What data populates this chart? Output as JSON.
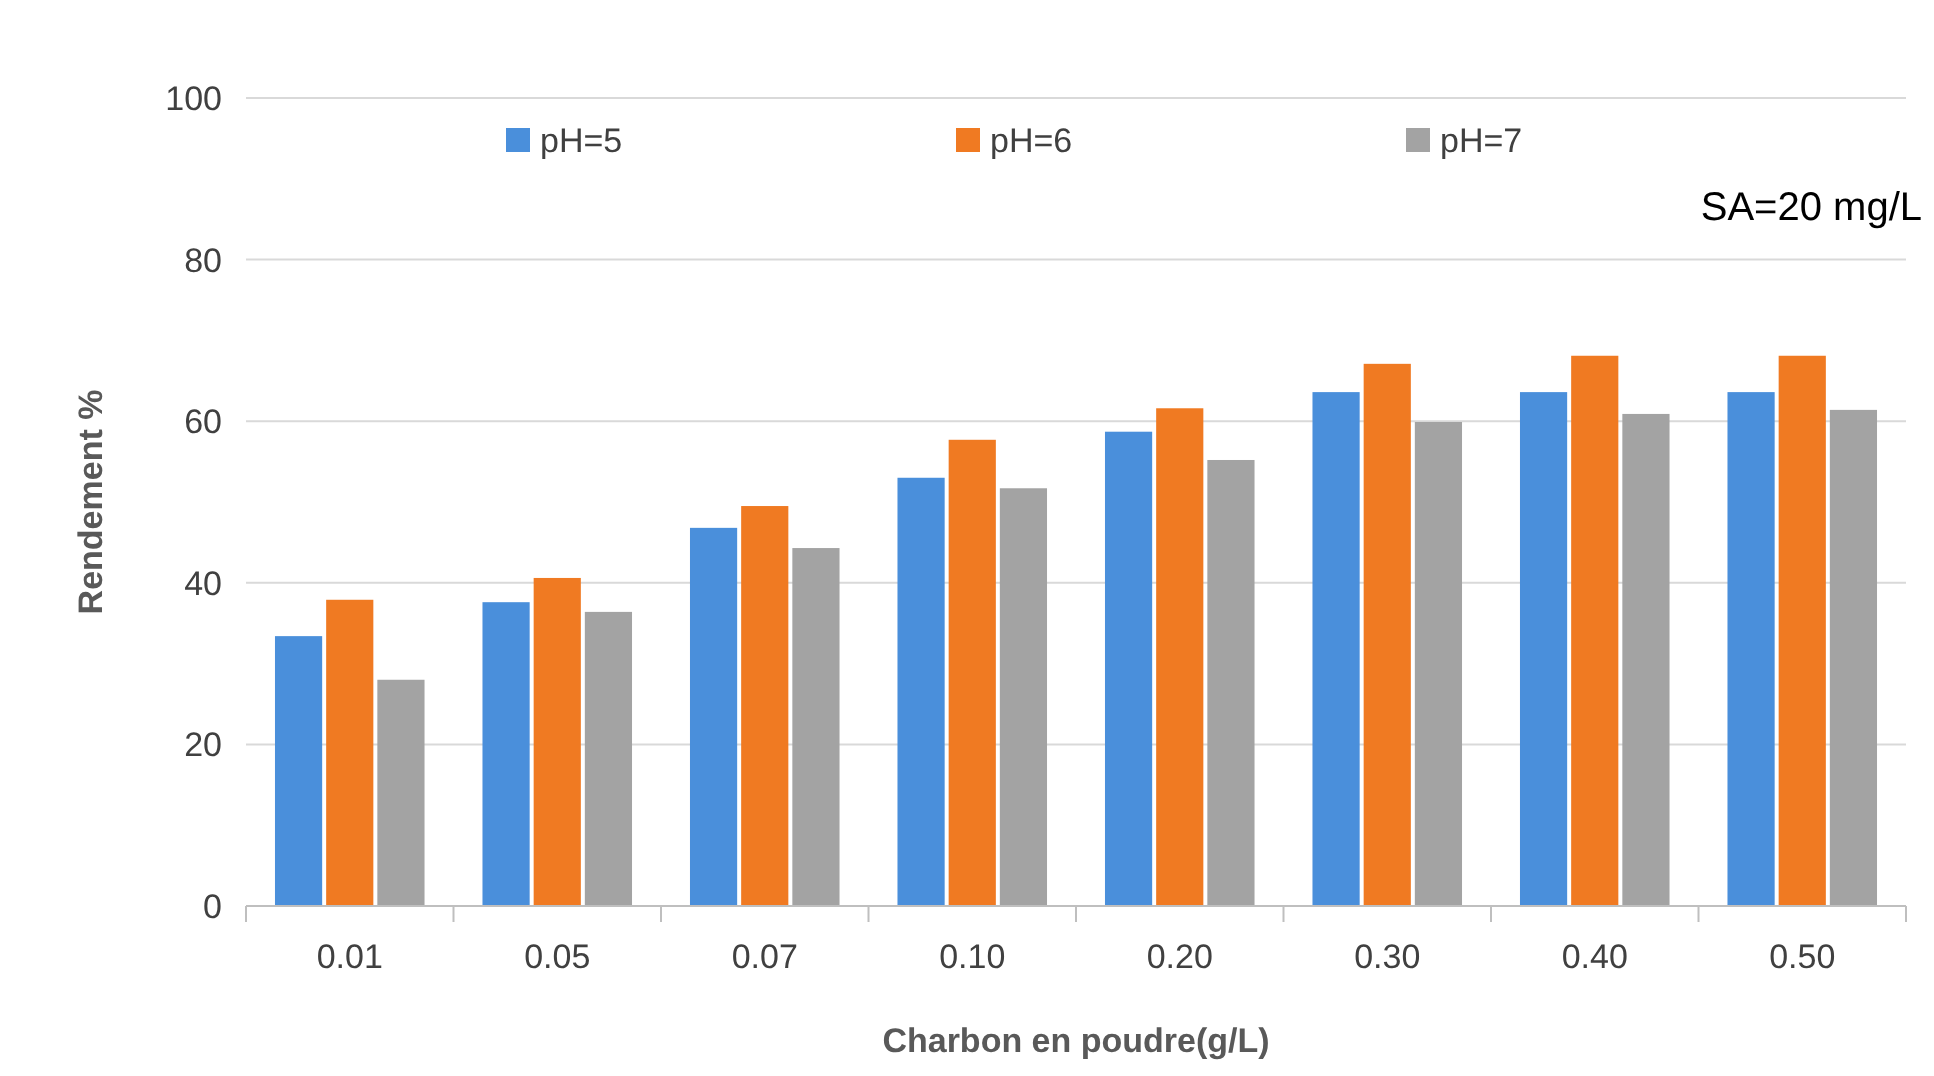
{
  "chart_data": {
    "type": "bar",
    "xlabel": "Charbon en poudre(g/L)",
    "ylabel": "Rendement  %",
    "categories": [
      "0.01",
      "0.05",
      "0.07",
      "0.10",
      "0.20",
      "0.30",
      "0.40",
      "0.50"
    ],
    "series": [
      {
        "name": "pH=5",
        "color": "#4a8fdb",
        "values": [
          33.4,
          37.6,
          46.8,
          53.0,
          58.7,
          63.6,
          63.6,
          63.6
        ]
      },
      {
        "name": "pH=6",
        "color": "#f07a22",
        "values": [
          37.9,
          40.6,
          49.5,
          57.7,
          61.6,
          67.1,
          68.1,
          68.1
        ]
      },
      {
        "name": "pH=7",
        "color": "#a3a3a3",
        "values": [
          28.0,
          36.4,
          44.3,
          51.7,
          55.2,
          59.9,
          60.9,
          61.4
        ]
      }
    ],
    "ylim": [
      0,
      100
    ],
    "yticks": [
      0,
      20,
      40,
      60,
      80,
      100
    ],
    "grid": "y",
    "legend": "top",
    "annotations": [
      "SA=20 mg/L"
    ]
  }
}
